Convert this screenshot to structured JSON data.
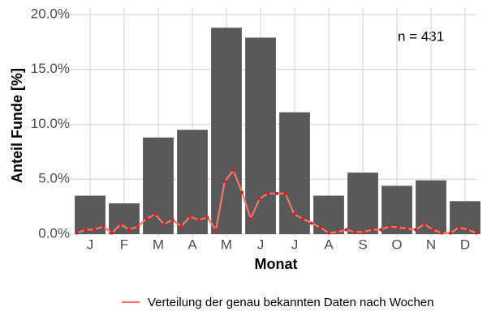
{
  "chart_data": {
    "type": "bar",
    "xlabel": "Monat",
    "ylabel": "Anteil Funde [%]",
    "annotation": "n = 431",
    "categories": [
      "J",
      "F",
      "M",
      "A",
      "M",
      "J",
      "J",
      "A",
      "S",
      "O",
      "N",
      "D"
    ],
    "values": [
      3.5,
      2.8,
      8.8,
      9.5,
      18.8,
      17.9,
      11.1,
      3.5,
      5.6,
      4.4,
      4.9,
      3.0
    ],
    "color": "#595959",
    "ylim": [
      0,
      20
    ],
    "yticks": [
      {
        "value": 0,
        "label": "0.0%"
      },
      {
        "value": 5,
        "label": "5.0%"
      },
      {
        "value": 10,
        "label": "10.0%"
      },
      {
        "value": 15,
        "label": "15.0%"
      },
      {
        "value": 20,
        "label": "20.0%"
      }
    ],
    "grid": true,
    "line": {
      "name": "Verteilung der genau bekannten Daten nach Wochen",
      "color": "#f8766d",
      "point_color": "#e31a1c",
      "values": [
        0.1,
        0.4,
        0.4,
        0.7,
        0.1,
        0.9,
        0.4,
        0.7,
        1.4,
        1.8,
        0.9,
        1.3,
        0.7,
        1.6,
        1.3,
        1.5,
        0.4,
        4.8,
        5.8,
        3.8,
        1.4,
        3.2,
        3.7,
        3.7,
        3.7,
        1.8,
        1.4,
        1.0,
        0.6,
        0.1,
        0.2,
        0.4,
        0.2,
        0.2,
        0.4,
        0.4,
        0.7,
        0.6,
        0.5,
        0.4,
        0.9,
        0.4,
        0.1,
        0.1,
        0.6,
        0.4,
        0.1
      ]
    },
    "legend": "bottom"
  }
}
